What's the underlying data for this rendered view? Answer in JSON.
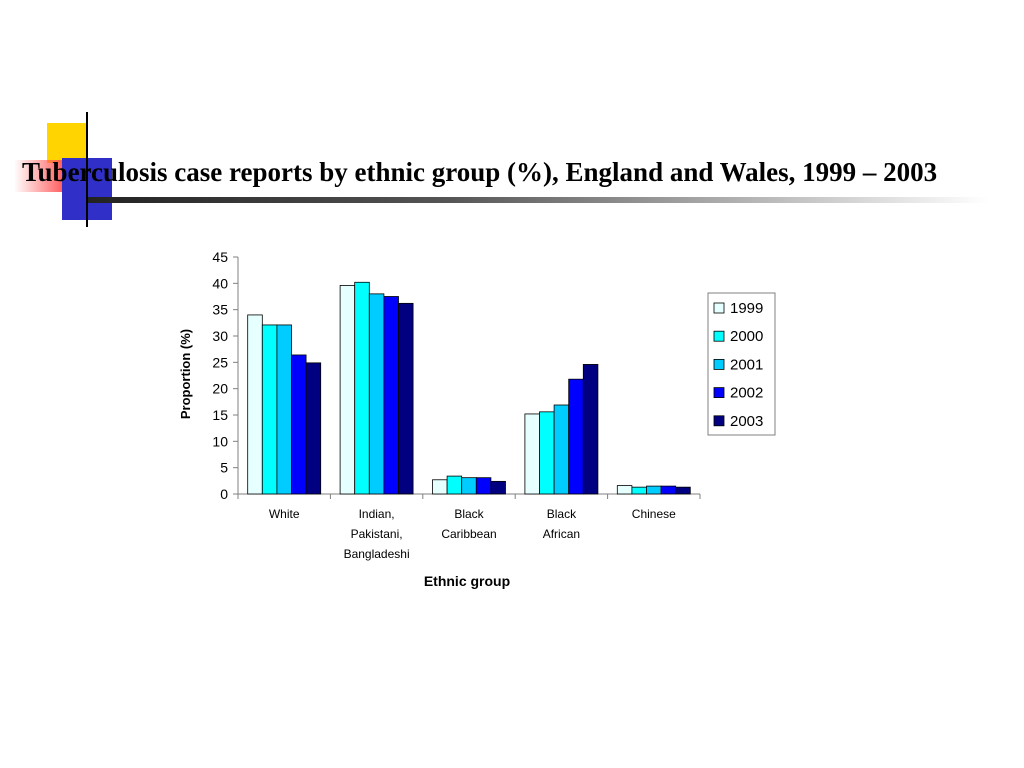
{
  "slide": {
    "title": "Tuberculosis case reports by ethnic group (%), England and Wales, 1999 – 2003"
  },
  "chart_data": {
    "type": "bar",
    "title": "",
    "xlabel": "Ethnic group",
    "ylabel": "Proportion (%)",
    "ylim": [
      0,
      45
    ],
    "yticks": [
      0,
      5,
      10,
      15,
      20,
      25,
      30,
      35,
      40,
      45
    ],
    "grid": false,
    "legend_position": "right",
    "categories": [
      [
        "White"
      ],
      [
        "Indian,",
        "Pakistani,",
        "Bangladeshi"
      ],
      [
        "Black",
        "Caribbean"
      ],
      [
        "Black",
        "African"
      ],
      [
        "Chinese"
      ]
    ],
    "series": [
      {
        "name": "1999",
        "color": "#e6ffff",
        "values": [
          34.0,
          39.6,
          2.7,
          15.2,
          1.6
        ]
      },
      {
        "name": "2000",
        "color": "#00ffff",
        "values": [
          32.1,
          40.2,
          3.4,
          15.6,
          1.3
        ]
      },
      {
        "name": "2001",
        "color": "#00ccff",
        "values": [
          32.1,
          38.0,
          3.1,
          16.9,
          1.5
        ]
      },
      {
        "name": "2002",
        "color": "#0000ff",
        "values": [
          26.4,
          37.5,
          3.1,
          21.8,
          1.5
        ]
      },
      {
        "name": "2003",
        "color": "#000080",
        "values": [
          24.9,
          36.2,
          2.4,
          24.6,
          1.3
        ]
      }
    ]
  }
}
